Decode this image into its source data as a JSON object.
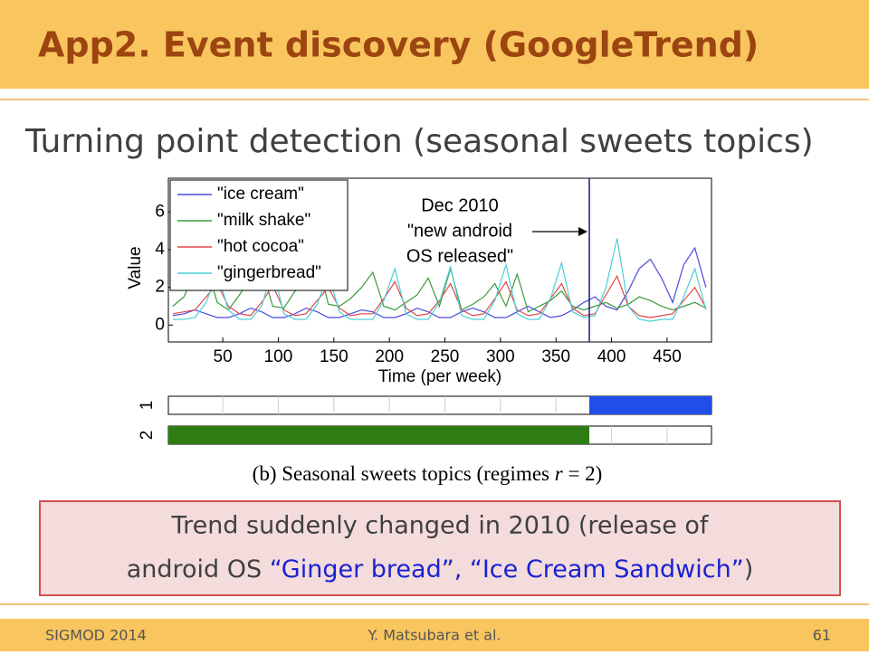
{
  "header": {
    "title": "App2. Event discovery (GoogleTrend)"
  },
  "body": {
    "text": "Turning point detection (seasonal sweets topics)"
  },
  "chart_data": {
    "type": "line",
    "xlabel": "Time (per week)",
    "ylabel": "Value",
    "xlim": [
      1,
      490
    ],
    "ylim": [
      -0.9,
      7.8
    ],
    "xticks": [
      50,
      100,
      150,
      200,
      250,
      300,
      350,
      400,
      450
    ],
    "yticks": [
      0,
      2,
      4,
      6
    ],
    "legend": "upper left",
    "x": [
      5,
      15,
      25,
      35,
      45,
      55,
      65,
      75,
      85,
      95,
      105,
      115,
      125,
      135,
      145,
      155,
      165,
      175,
      185,
      195,
      205,
      215,
      225,
      235,
      245,
      255,
      265,
      275,
      285,
      295,
      305,
      315,
      325,
      335,
      345,
      355,
      365,
      375,
      385,
      395,
      405,
      415,
      425,
      435,
      445,
      455,
      465,
      475,
      485
    ],
    "series": [
      {
        "name": "\"ice cream\"",
        "color": "#4a4ae0",
        "values": [
          0.5,
          0.6,
          0.8,
          0.6,
          0.4,
          0.4,
          0.6,
          0.9,
          0.7,
          0.4,
          0.4,
          0.6,
          0.9,
          0.7,
          0.4,
          0.4,
          0.6,
          0.8,
          0.7,
          0.4,
          0.4,
          0.6,
          0.9,
          0.7,
          0.4,
          0.4,
          0.7,
          0.9,
          0.7,
          0.4,
          0.4,
          0.7,
          1.0,
          0.7,
          0.4,
          0.5,
          0.8,
          1.2,
          1.5,
          1.0,
          0.8,
          1.8,
          3.0,
          3.5,
          2.5,
          1.2,
          3.2,
          4.1,
          2.0
        ]
      },
      {
        "name": "\"milk shake\"",
        "color": "#3a9a3a",
        "values": [
          1.0,
          1.5,
          2.8,
          3.2,
          1.2,
          0.8,
          1.6,
          2.5,
          3.0,
          1.0,
          0.9,
          1.8,
          2.2,
          3.5,
          1.1,
          1.0,
          1.4,
          2.0,
          2.8,
          1.0,
          0.8,
          1.2,
          1.6,
          2.5,
          1.0,
          3.0,
          0.8,
          1.1,
          1.5,
          2.2,
          1.0,
          2.7,
          0.7,
          1.0,
          1.3,
          1.8,
          1.0,
          0.8,
          1.0,
          1.2,
          0.9,
          1.1,
          1.5,
          1.3,
          1.0,
          0.8,
          1.0,
          1.2,
          0.9
        ]
      },
      {
        "name": "\"hot cocoa\"",
        "color": "#e04848",
        "values": [
          0.6,
          0.7,
          0.8,
          1.5,
          2.2,
          1.0,
          0.6,
          0.5,
          1.2,
          2.1,
          0.8,
          0.5,
          0.6,
          1.3,
          2.0,
          0.9,
          0.5,
          0.6,
          0.6,
          1.4,
          2.3,
          0.9,
          0.5,
          0.6,
          1.3,
          2.2,
          0.8,
          0.5,
          0.6,
          1.4,
          2.3,
          0.8,
          0.5,
          0.6,
          1.4,
          2.2,
          0.9,
          0.5,
          0.6,
          1.6,
          2.6,
          1.0,
          0.5,
          0.4,
          0.5,
          0.6,
          1.3,
          2.0,
          0.9
        ]
      },
      {
        "name": "\"gingerbread\"",
        "color": "#4ccfd6",
        "values": [
          0.3,
          0.3,
          0.4,
          1.2,
          2.8,
          0.8,
          0.3,
          0.3,
          1.0,
          3.0,
          0.6,
          0.3,
          0.3,
          1.1,
          2.7,
          0.7,
          0.3,
          0.3,
          0.3,
          1.3,
          3.0,
          0.6,
          0.3,
          0.3,
          1.2,
          3.1,
          0.5,
          0.3,
          0.3,
          1.3,
          3.2,
          0.6,
          0.3,
          0.3,
          1.4,
          3.3,
          0.7,
          0.4,
          0.5,
          2.0,
          4.6,
          1.0,
          0.3,
          0.2,
          0.3,
          0.3,
          1.5,
          3.0,
          0.8
        ]
      }
    ],
    "annotation": {
      "x": 380,
      "lines": [
        "Dec 2010",
        "\"new android",
        "OS released\""
      ]
    },
    "regimes": [
      {
        "label": "1",
        "color": "#1f4fe8",
        "start": 380,
        "end": 490
      },
      {
        "label": "2",
        "color": "#2f7d12",
        "start": 1,
        "end": 380
      }
    ],
    "caption": {
      "prefix": "(b) Seasonal sweets topics (regimes ",
      "var": "r",
      "suffix": " = 2)"
    }
  },
  "callout": {
    "line1": "Trend suddenly changed in 2010 (release of",
    "line2a": "android OS ",
    "line2b": "“Ginger bread”, “Ice Cream Sandwich”",
    "line2c": ")"
  },
  "footer": {
    "venue": "SIGMOD 2014",
    "authors": "Y. Matsubara et al.",
    "page": "61"
  }
}
